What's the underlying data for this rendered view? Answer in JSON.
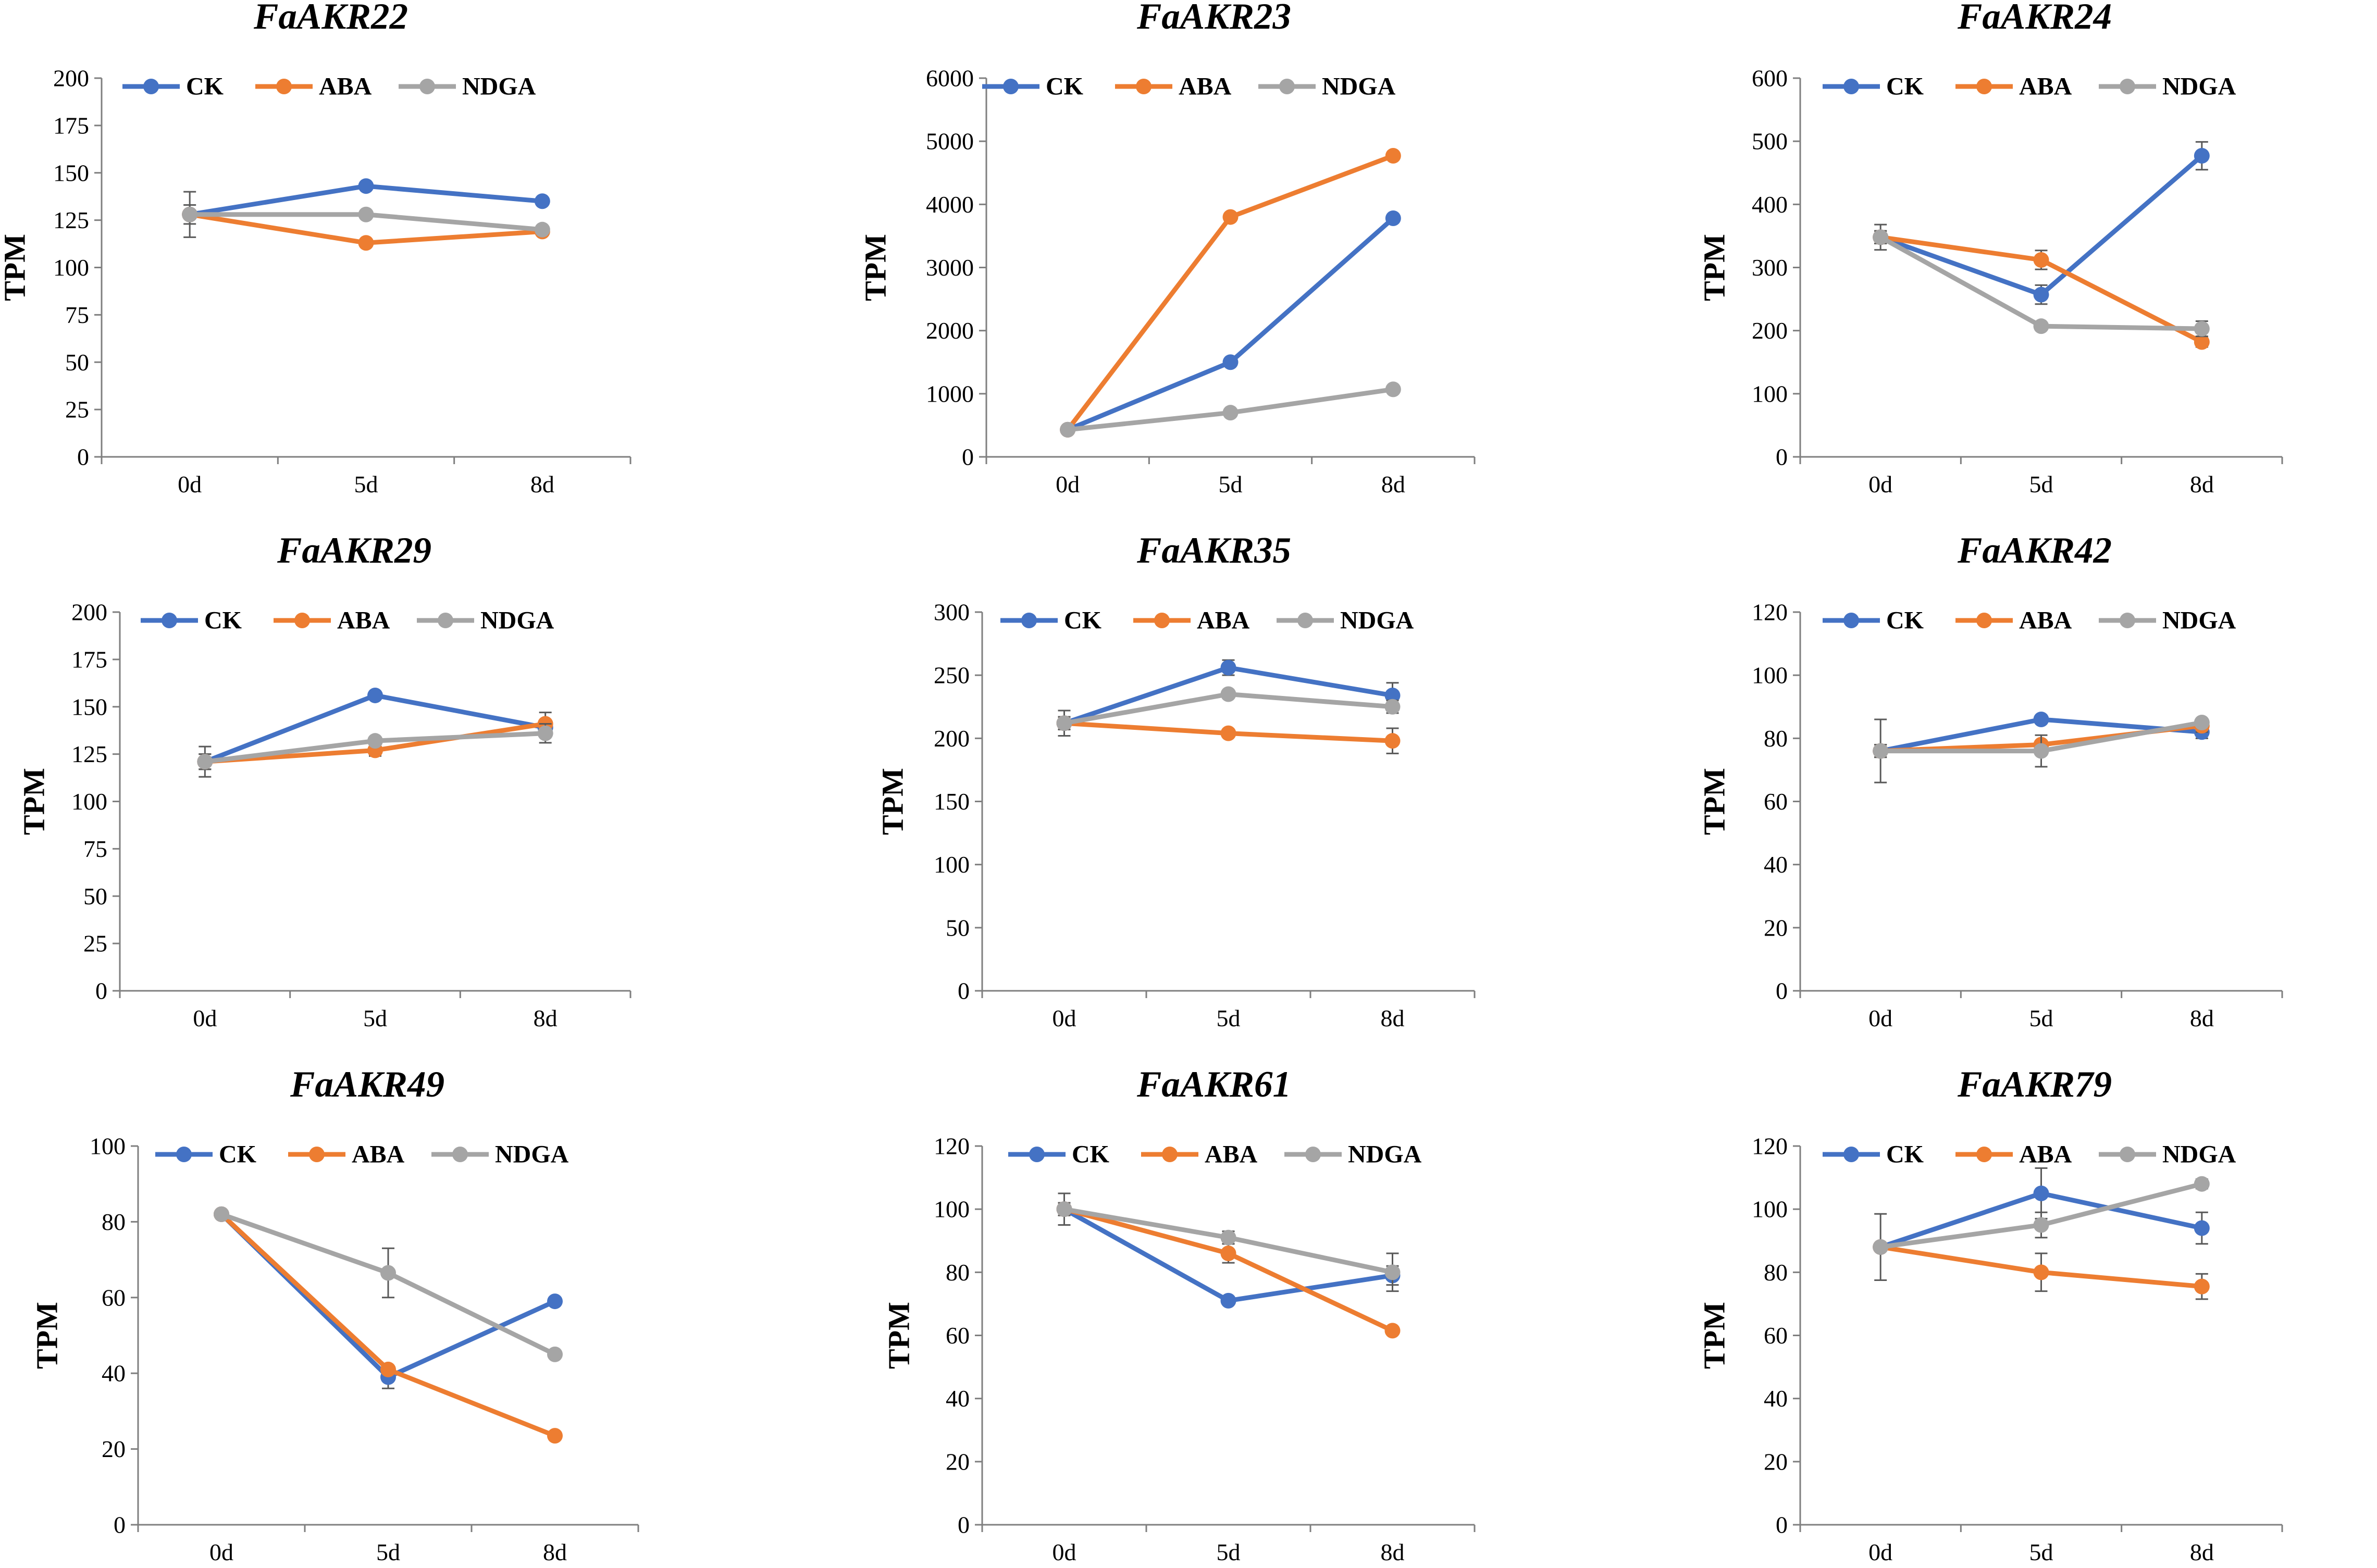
{
  "colors": {
    "CK": "#4472C4",
    "ABA": "#ED7D31",
    "NDGA": "#A5A5A5",
    "axis": "#7F7F7F",
    "errorbar": "#595959"
  },
  "chart_data": [
    {
      "type": "line",
      "title": "FaAKR22",
      "ylabel": "TPM",
      "xlabel": "",
      "categories": [
        "0d",
        "5d",
        "8d"
      ],
      "ylim": [
        0,
        200
      ],
      "yticks": [
        0,
        25,
        50,
        75,
        100,
        125,
        150,
        175,
        200
      ],
      "legend": [
        "CK",
        "ABA",
        "NDGA"
      ],
      "series": [
        {
          "name": "CK",
          "values": [
            128,
            143,
            135
          ],
          "errors": [
            5,
            2,
            2
          ]
        },
        {
          "name": "ABA",
          "values": [
            128,
            113,
            119
          ],
          "errors": [
            2,
            2,
            2
          ]
        },
        {
          "name": "NDGA",
          "values": [
            128,
            128,
            120
          ],
          "errors": [
            12,
            2,
            2
          ]
        }
      ]
    },
    {
      "type": "line",
      "title": "FaAKR23",
      "ylabel": "TPM",
      "xlabel": "",
      "categories": [
        "0d",
        "5d",
        "8d"
      ],
      "ylim": [
        0,
        6000
      ],
      "yticks": [
        0,
        1000,
        2000,
        3000,
        4000,
        5000,
        6000
      ],
      "legend": [
        "CK",
        "ABA",
        "NDGA"
      ],
      "series": [
        {
          "name": "CK",
          "values": [
            430,
            1500,
            3780
          ],
          "errors": [
            30,
            50,
            60
          ]
        },
        {
          "name": "ABA",
          "values": [
            430,
            3800,
            4770
          ],
          "errors": [
            30,
            60,
            50
          ]
        },
        {
          "name": "NDGA",
          "values": [
            430,
            700,
            1070
          ],
          "errors": [
            30,
            30,
            40
          ]
        }
      ]
    },
    {
      "type": "line",
      "title": "FaAKR24",
      "ylabel": "TPM",
      "xlabel": "",
      "categories": [
        "0d",
        "5d",
        "8d"
      ],
      "ylim": [
        0,
        600
      ],
      "yticks": [
        0,
        100,
        200,
        300,
        400,
        500,
        600
      ],
      "legend": [
        "CK",
        "ABA",
        "NDGA"
      ],
      "series": [
        {
          "name": "CK",
          "values": [
            348,
            257,
            477
          ],
          "errors": [
            10,
            15,
            22
          ]
        },
        {
          "name": "ABA",
          "values": [
            348,
            312,
            182
          ],
          "errors": [
            10,
            15,
            8
          ]
        },
        {
          "name": "NDGA",
          "values": [
            348,
            207,
            203
          ],
          "errors": [
            20,
            5,
            12
          ]
        }
      ]
    },
    {
      "type": "line",
      "title": "FaAKR29",
      "ylabel": "TPM",
      "xlabel": "",
      "categories": [
        "0d",
        "5d",
        "8d"
      ],
      "ylim": [
        0,
        200
      ],
      "yticks": [
        0,
        25,
        50,
        75,
        100,
        125,
        150,
        175,
        200
      ],
      "legend": [
        "CK",
        "ABA",
        "NDGA"
      ],
      "series": [
        {
          "name": "CK",
          "values": [
            121,
            156,
            139
          ],
          "errors": [
            4,
            2,
            3
          ]
        },
        {
          "name": "ABA",
          "values": [
            121,
            127,
            141
          ],
          "errors": [
            4,
            3,
            6
          ]
        },
        {
          "name": "NDGA",
          "values": [
            121,
            132,
            136
          ],
          "errors": [
            8,
            2,
            5
          ]
        }
      ]
    },
    {
      "type": "line",
      "title": "FaAKR35",
      "ylabel": "TPM",
      "xlabel": "",
      "categories": [
        "0d",
        "5d",
        "8d"
      ],
      "ylim": [
        0,
        300
      ],
      "yticks": [
        0,
        50,
        100,
        150,
        200,
        250,
        300
      ],
      "legend": [
        "CK",
        "ABA",
        "NDGA"
      ],
      "series": [
        {
          "name": "CK",
          "values": [
            212,
            256,
            234
          ],
          "errors": [
            5,
            6,
            10
          ]
        },
        {
          "name": "ABA",
          "values": [
            212,
            204,
            198
          ],
          "errors": [
            5,
            3,
            10
          ]
        },
        {
          "name": "NDGA",
          "values": [
            212,
            235,
            225
          ],
          "errors": [
            10,
            3,
            5
          ]
        }
      ]
    },
    {
      "type": "line",
      "title": "FaAKR42",
      "ylabel": "TPM",
      "xlabel": "",
      "categories": [
        "0d",
        "5d",
        "8d"
      ],
      "ylim": [
        0,
        120
      ],
      "yticks": [
        0,
        20,
        40,
        60,
        80,
        100,
        120
      ],
      "legend": [
        "CK",
        "ABA",
        "NDGA"
      ],
      "series": [
        {
          "name": "CK",
          "values": [
            76,
            86,
            82
          ],
          "errors": [
            2,
            1,
            2
          ]
        },
        {
          "name": "ABA",
          "values": [
            76,
            78,
            84
          ],
          "errors": [
            2,
            1,
            2
          ]
        },
        {
          "name": "NDGA",
          "values": [
            76,
            76,
            85
          ],
          "errors": [
            10,
            5,
            1
          ]
        }
      ]
    },
    {
      "type": "line",
      "title": "FaAKR49",
      "ylabel": "TPM",
      "xlabel": "",
      "categories": [
        "0d",
        "5d",
        "8d"
      ],
      "ylim": [
        0,
        100
      ],
      "yticks": [
        0,
        20,
        40,
        60,
        80,
        100
      ],
      "legend": [
        "CK",
        "ABA",
        "NDGA"
      ],
      "series": [
        {
          "name": "CK",
          "values": [
            82,
            39,
            59
          ],
          "errors": [
            1,
            3,
            1
          ]
        },
        {
          "name": "ABA",
          "values": [
            82,
            41,
            23.5
          ],
          "errors": [
            1,
            1,
            1
          ]
        },
        {
          "name": "NDGA",
          "values": [
            82,
            66.5,
            45
          ],
          "errors": [
            1,
            6.5,
            1
          ]
        }
      ]
    },
    {
      "type": "line",
      "title": "FaAKR61",
      "ylabel": "TPM",
      "xlabel": "",
      "categories": [
        "0d",
        "5d",
        "8d"
      ],
      "ylim": [
        0,
        120
      ],
      "yticks": [
        0,
        20,
        40,
        60,
        80,
        100,
        120
      ],
      "legend": [
        "CK",
        "ABA",
        "NDGA"
      ],
      "series": [
        {
          "name": "CK",
          "values": [
            100,
            71,
            79
          ],
          "errors": [
            1,
            1,
            3
          ]
        },
        {
          "name": "ABA",
          "values": [
            100,
            86,
            61.5
          ],
          "errors": [
            2,
            3,
            1
          ]
        },
        {
          "name": "NDGA",
          "values": [
            100,
            91,
            80
          ],
          "errors": [
            5,
            2,
            6
          ]
        }
      ]
    },
    {
      "type": "line",
      "title": "FaAKR79",
      "ylabel": "TPM",
      "xlabel": "",
      "categories": [
        "0d",
        "5d",
        "8d"
      ],
      "ylim": [
        0,
        120
      ],
      "yticks": [
        0,
        20,
        40,
        60,
        80,
        100,
        120
      ],
      "legend": [
        "CK",
        "ABA",
        "NDGA"
      ],
      "series": [
        {
          "name": "CK",
          "values": [
            88,
            105,
            94
          ],
          "errors": [
            1,
            8,
            5
          ]
        },
        {
          "name": "ABA",
          "values": [
            88,
            80,
            75.5
          ],
          "errors": [
            1,
            6,
            4
          ]
        },
        {
          "name": "NDGA",
          "values": [
            88,
            95,
            108
          ],
          "errors": [
            10.5,
            4,
            1.5
          ]
        }
      ]
    }
  ]
}
